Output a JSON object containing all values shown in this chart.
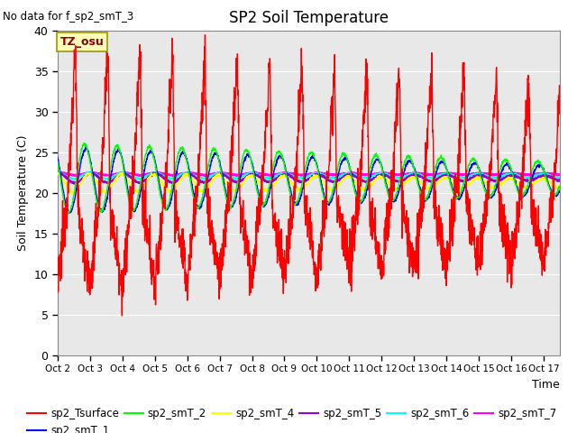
{
  "title": "SP2 Soil Temperature",
  "no_data_text": "No data for f_sp2_smT_3",
  "ylabel": "Soil Temperature (C)",
  "xlabel": "Time",
  "tz_label": "TZ_osu",
  "ylim": [
    0,
    40
  ],
  "yticks": [
    0,
    5,
    10,
    15,
    20,
    25,
    30,
    35,
    40
  ],
  "x_tick_labels": [
    "Oct 2",
    "Oct 3",
    "Oct 4",
    "Oct 5",
    "Oct 6",
    "Oct 7",
    "Oct 8",
    "Oct 9",
    "Oct 10",
    "Oct 11",
    "Oct 12",
    "Oct 13",
    "Oct 14",
    "Oct 15",
    "Oct 16",
    "Oct 17"
  ],
  "bg_color": "#e8e8e8",
  "fig_bg": "#ffffff",
  "series_colors": {
    "sp2_Tsurface": "#ff0000",
    "sp2_smT_1": "#0000ff",
    "sp2_smT_2": "#00ff00",
    "sp2_smT_4": "#ffff00",
    "sp2_smT_5": "#9900cc",
    "sp2_smT_6": "#00ffff",
    "sp2_smT_7": "#ff00ff"
  }
}
